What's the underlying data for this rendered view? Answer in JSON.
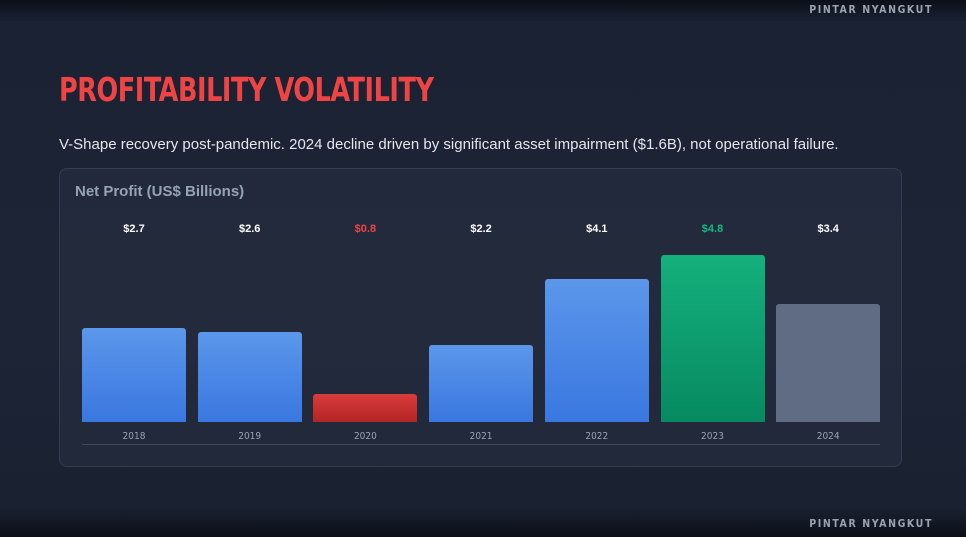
{
  "brand": {
    "top": "PINTAR NYANGKUT",
    "bottom": "PINTAR NYANGKUT"
  },
  "title": "PROFITABILITY VOLATILITY",
  "subtitle": "V-Shape recovery post-pandemic. 2024 decline driven by significant asset impairment ($1.6B), not operational failure.",
  "chart_data": {
    "type": "bar",
    "title": "Net Profit (US$ Billions)",
    "xlabel": "",
    "ylabel": "",
    "categories": [
      "2018",
      "2019",
      "2020",
      "2021",
      "2022",
      "2023",
      "2024"
    ],
    "values": [
      2.7,
      2.6,
      0.8,
      2.2,
      4.1,
      4.8,
      3.4
    ],
    "value_labels": [
      "$2.7",
      "$2.6",
      "$0.8",
      "$2.2",
      "$4.1",
      "$4.8",
      "$3.4"
    ],
    "bar_styles": [
      "pos",
      "pos",
      "neg",
      "pos",
      "pos",
      "best",
      "recent"
    ],
    "ylim": [
      0,
      5
    ],
    "grid": false,
    "colors": {
      "positive": "#3b82f6",
      "decline": "#dc2626",
      "peak": "#10b981",
      "latest": "#64748b"
    }
  }
}
